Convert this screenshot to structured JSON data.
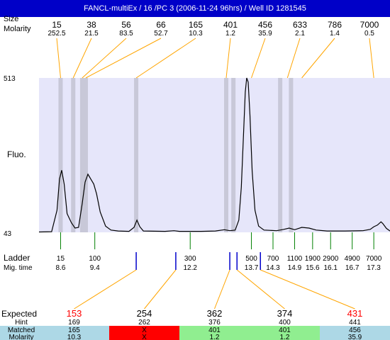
{
  "window": {
    "title": "FANCL-multiEx / 16 /PC 3 (2006-11-24 96hrs) / Well ID 1281545"
  },
  "chart_data": {
    "type": "line",
    "ylabel": "Fluo.",
    "ylim": [
      43,
      513
    ],
    "yticks": [
      "513",
      "43"
    ],
    "top_labels": {
      "size": "Size",
      "molarity": "Molarity"
    },
    "peaks": [
      {
        "size": "15",
        "molarity": "252.5",
        "x_time": 8.6
      },
      {
        "size": "38",
        "molarity": "21.5",
        "x_time": 8.95
      },
      {
        "size": "56",
        "molarity": "83.5",
        "x_time": 9.2
      },
      {
        "size": "66",
        "molarity": "52.7",
        "x_time": 9.3
      },
      {
        "size": "165",
        "molarity": "10.3",
        "x_time": 10.7
      },
      {
        "size": "401",
        "molarity": "1.2",
        "x_time": 13.2
      },
      {
        "size": "456",
        "molarity": "35.9",
        "x_time": 13.9
      },
      {
        "size": "633",
        "molarity": "2.1",
        "x_time": 14.9
      },
      {
        "size": "786",
        "molarity": "1.4",
        "x_time": 15.3
      },
      {
        "size": "7000",
        "molarity": "0.5",
        "x_time": 17.3
      }
    ],
    "trace": [
      [
        8.0,
        44
      ],
      [
        8.35,
        45
      ],
      [
        8.5,
        110
      ],
      [
        8.57,
        205
      ],
      [
        8.63,
        232
      ],
      [
        8.7,
        190
      ],
      [
        8.78,
        100
      ],
      [
        8.9,
        72
      ],
      [
        9.0,
        56
      ],
      [
        9.1,
        58
      ],
      [
        9.2,
        130
      ],
      [
        9.28,
        196
      ],
      [
        9.36,
        220
      ],
      [
        9.44,
        205
      ],
      [
        9.52,
        190
      ],
      [
        9.6,
        160
      ],
      [
        9.7,
        105
      ],
      [
        9.85,
        62
      ],
      [
        10.0,
        50
      ],
      [
        10.2,
        47
      ],
      [
        10.5,
        46
      ],
      [
        10.64,
        58
      ],
      [
        10.72,
        80
      ],
      [
        10.8,
        60
      ],
      [
        10.9,
        47
      ],
      [
        11.5,
        46
      ],
      [
        11.75,
        48
      ],
      [
        11.9,
        46
      ],
      [
        12.5,
        46
      ],
      [
        12.9,
        47
      ],
      [
        13.15,
        51
      ],
      [
        13.3,
        48
      ],
      [
        13.45,
        50
      ],
      [
        13.55,
        80
      ],
      [
        13.62,
        180
      ],
      [
        13.68,
        340
      ],
      [
        13.73,
        470
      ],
      [
        13.77,
        513
      ],
      [
        13.81,
        500
      ],
      [
        13.86,
        400
      ],
      [
        13.92,
        230
      ],
      [
        14.0,
        110
      ],
      [
        14.1,
        62
      ],
      [
        14.25,
        50
      ],
      [
        14.4,
        49
      ],
      [
        14.6,
        48
      ],
      [
        14.8,
        52
      ],
      [
        14.95,
        56
      ],
      [
        15.1,
        51
      ],
      [
        15.3,
        58
      ],
      [
        15.5,
        56
      ],
      [
        15.7,
        50
      ],
      [
        16.0,
        47
      ],
      [
        16.5,
        47
      ],
      [
        17.0,
        48
      ],
      [
        17.2,
        52
      ],
      [
        17.3,
        60
      ],
      [
        17.4,
        65
      ],
      [
        17.5,
        75
      ],
      [
        17.55,
        70
      ],
      [
        17.65,
        55
      ],
      [
        17.75,
        47
      ]
    ],
    "x_range": [
      8.0,
      17.75
    ],
    "bands": [
      8.6,
      8.95,
      9.2,
      9.3,
      10.7,
      13.2,
      13.4,
      14.7,
      15.0
    ],
    "ladder": {
      "label": "Ladder",
      "time_label": "Mig. time",
      "items": [
        {
          "size": "15",
          "time": "8.6",
          "x_time": 8.6
        },
        {
          "size": "100",
          "time": "9.4",
          "x_time": 9.55
        },
        {
          "size": "300",
          "time": "12.2",
          "x_time": 12.2
        },
        {
          "size": "500",
          "time": "13.7",
          "x_time": 13.9
        },
        {
          "size": "700",
          "time": "14.3",
          "x_time": 14.5
        },
        {
          "size": "1100",
          "time": "14.9",
          "x_time": 15.1
        },
        {
          "size": "1900",
          "time": "15.6",
          "x_time": 15.6
        },
        {
          "size": "2900",
          "time": "16.1",
          "x_time": 16.1
        },
        {
          "size": "4900",
          "time": "16.7",
          "x_time": 16.7
        },
        {
          "size": "7000",
          "time": "17.3",
          "x_time": 17.3
        }
      ]
    },
    "markers": [
      10.7,
      11.8,
      13.3,
      13.5,
      14.15
    ],
    "expected": {
      "labels": {
        "expected": "Expected",
        "hint": "Hint",
        "matched": "Matched",
        "molarity": "Molarity"
      },
      "columns": [
        {
          "value": "153",
          "hint": "169",
          "matched": "165",
          "molarity": "10.3",
          "status": "ok",
          "value_color": "#ff0000",
          "marker": 0
        },
        {
          "value": "254",
          "hint": "262",
          "matched": "X",
          "molarity": "X",
          "status": "missing",
          "value_color": "#000000",
          "marker": 1
        },
        {
          "value": "362",
          "hint": "376",
          "matched": "401",
          "molarity": "1.2",
          "status": "match",
          "value_color": "#000000",
          "marker": 2
        },
        {
          "value": "374",
          "hint": "400",
          "matched": "401",
          "molarity": "1.2",
          "status": "match",
          "value_color": "#000000",
          "marker": 3
        },
        {
          "value": "431",
          "hint": "441",
          "matched": "456",
          "molarity": "35.9",
          "status": "ok",
          "value_color": "#ff0000",
          "marker": 4
        }
      ]
    },
    "colors": {
      "plot_bg": "#e6e6fa",
      "band": "#c8c8d8",
      "trace": "#000000",
      "guide": "#ffa500",
      "ladder_tick": "#008000",
      "marker": "#0000cc",
      "status_ok": "#add8e6",
      "status_missing": "#ff0000",
      "status_match": "#90ee90"
    }
  }
}
